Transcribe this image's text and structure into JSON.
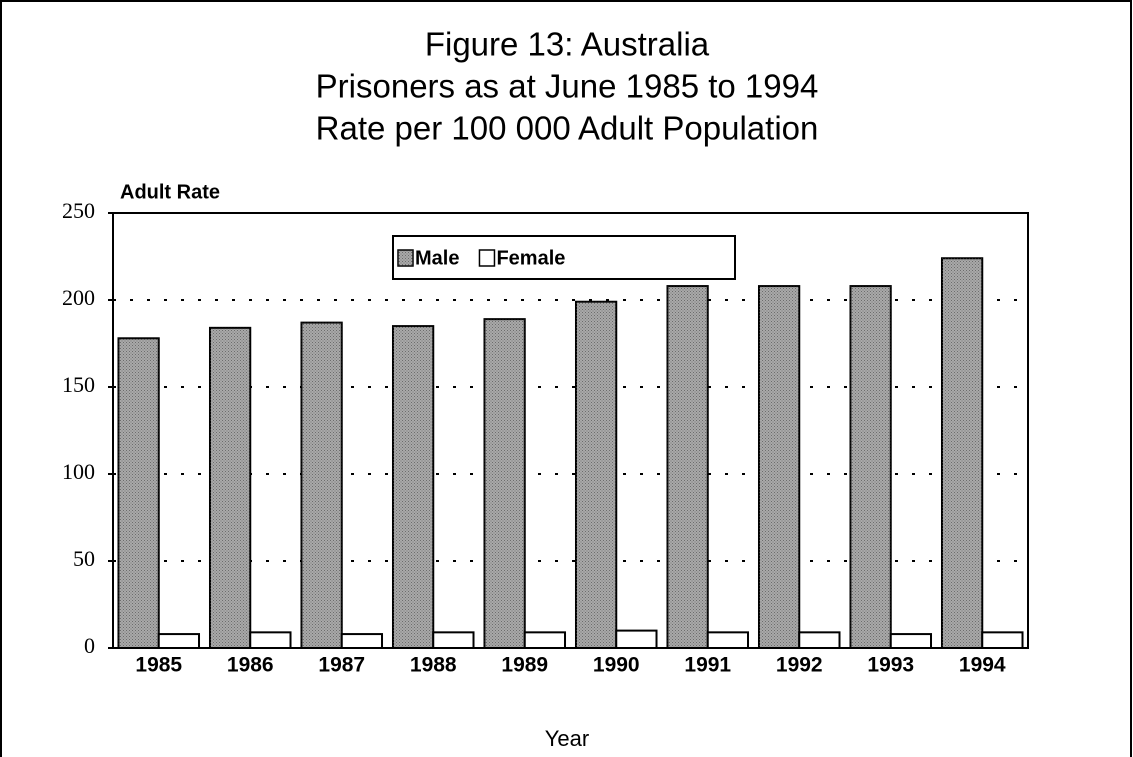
{
  "chart_data": {
    "type": "bar",
    "title": [
      "Figure 13: Australia",
      "Prisoners as at June 1985 to 1994",
      "Rate per 100 000 Adult Population"
    ],
    "y_label": "Adult Rate",
    "x_label": "Year",
    "categories": [
      "1985",
      "1986",
      "1987",
      "1988",
      "1989",
      "1990",
      "1991",
      "1992",
      "1993",
      "1994"
    ],
    "series": [
      {
        "name": "Male",
        "color": "#a9a9a9",
        "values": [
          178,
          184,
          187,
          185,
          189,
          199,
          208,
          208,
          208,
          224
        ]
      },
      {
        "name": "Female",
        "color": "#ffffff",
        "values": [
          8,
          9,
          8,
          9,
          9,
          10,
          9,
          9,
          8,
          9
        ]
      }
    ],
    "ylim": [
      0,
      250
    ],
    "yticks": [
      0,
      50,
      100,
      150,
      200,
      250
    ],
    "grid": true,
    "legend": "top"
  }
}
